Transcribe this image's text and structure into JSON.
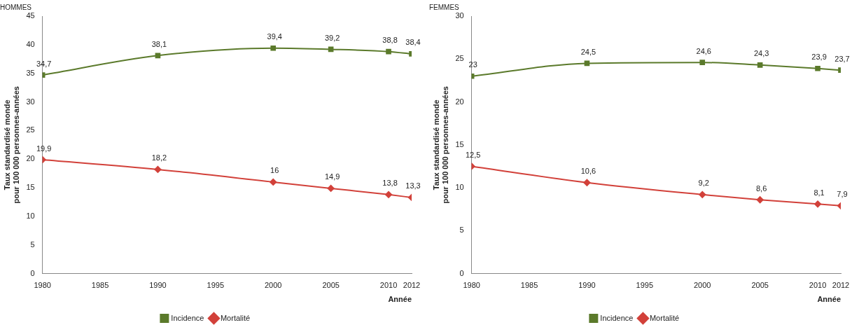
{
  "chart_data": [
    {
      "type": "line",
      "title": "HOMMES",
      "xlabel": "Année",
      "ylabel": "Taux standardisé monde\npour 100 000 personnes-années",
      "x": [
        1980,
        1990,
        2000,
        2005,
        2010,
        2012
      ],
      "xlim": [
        1980,
        2012
      ],
      "xticks": [
        1980,
        1985,
        1990,
        1995,
        2000,
        2005,
        2010,
        2012
      ],
      "ylim": [
        0,
        45
      ],
      "yticks": [
        0,
        5,
        10,
        15,
        20,
        25,
        30,
        35,
        40,
        45
      ],
      "series": [
        {
          "name": "Incidence",
          "color": "#5b7a2b",
          "marker": "square",
          "values": [
            34.7,
            38.1,
            39.4,
            39.2,
            38.8,
            38.4
          ],
          "value_labels": [
            "34,7",
            "38,1",
            "39,4",
            "39,2",
            "38,8",
            "38,4"
          ]
        },
        {
          "name": "Mortalité",
          "color": "#d2413a",
          "marker": "diamond",
          "values": [
            19.9,
            18.2,
            16,
            14.9,
            13.8,
            13.3
          ],
          "value_labels": [
            "19,9",
            "18,2",
            "16",
            "14,9",
            "13,8",
            "13,3"
          ]
        }
      ],
      "grid": false,
      "legend": "bottom"
    },
    {
      "type": "line",
      "title": "FEMMES",
      "xlabel": "Année",
      "ylabel": "Taux standardisé monde\npour 100 000 personnes-années",
      "x": [
        1980,
        1990,
        2000,
        2005,
        2010,
        2012
      ],
      "xlim": [
        1980,
        2012
      ],
      "xticks": [
        1980,
        1985,
        1990,
        1995,
        2000,
        2005,
        2010,
        2012
      ],
      "ylim": [
        0,
        30
      ],
      "yticks": [
        0,
        5,
        10,
        15,
        20,
        25,
        30
      ],
      "series": [
        {
          "name": "Incidence",
          "color": "#5b7a2b",
          "marker": "square",
          "values": [
            23,
            24.5,
            24.6,
            24.3,
            23.9,
            23.7
          ],
          "value_labels": [
            "23",
            "24,5",
            "24,6",
            "24,3",
            "23,9",
            "23,7"
          ]
        },
        {
          "name": "Mortalité",
          "color": "#d2413a",
          "marker": "diamond",
          "values": [
            12.5,
            10.6,
            9.2,
            8.6,
            8.1,
            7.9
          ],
          "value_labels": [
            "12,5",
            "10,6",
            "9,2",
            "8,6",
            "8,1",
            "7,9"
          ]
        }
      ],
      "grid": false,
      "legend": "bottom"
    }
  ]
}
